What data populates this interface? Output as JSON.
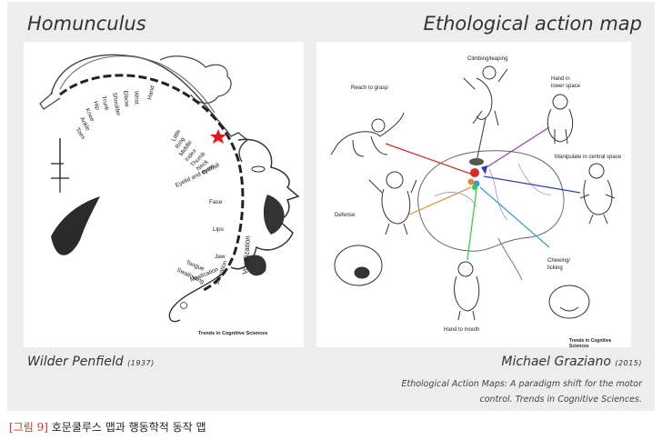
{
  "figure": {
    "left_title": "Homunculus",
    "right_title": "Ethological action map",
    "left_author": "Wilder Penfield",
    "left_year": "(1937)",
    "right_author": "Michael Graziano",
    "right_year": "(2015)",
    "citation_line1": "Ethological Action Maps: A paradigm shift for the motor",
    "citation_line2": "control. Trends in Cognitive Sciences.",
    "credit": "Trends in Cognitive Sciences"
  },
  "homunculus": {
    "body_labels": [
      "Toes",
      "Ankle",
      "Knee",
      "Hip",
      "Trunk",
      "Shoulder",
      "Elbow",
      "Wrist",
      "Hand"
    ],
    "finger_labels": [
      "Little",
      "Ring",
      "Middle",
      "Index",
      "Thumb",
      "Neck",
      "Brow",
      "Eyelid and eyeball"
    ],
    "face_labels": [
      "Face",
      "Lips"
    ],
    "mouth_labels": [
      "Jaw",
      "Tongue",
      "Swallowing",
      "Mastication",
      "Salivation",
      "Vocalization"
    ]
  },
  "action_map": {
    "labels": {
      "climbing": "Climbing/leaping",
      "reach": "Reach to grasp",
      "hand_lower_1": "Hand in",
      "hand_lower_2": "lower space",
      "manipulate": "Manipulate in central space",
      "defense": "Defense",
      "chewing_1": "Chewing/",
      "chewing_2": "licking",
      "hand_mouth": "Hand to mouth"
    },
    "colors": {
      "reach": "#d22b2b",
      "climbing": "#555555",
      "hand_lower": "#8e44ad",
      "manipulate": "#2b3ec8",
      "defense": "#e0883a",
      "chewing": "#3a9ad9",
      "hand_mouth": "#2ecc40"
    }
  },
  "caption": {
    "tag": "[그림 9]",
    "text": "호문쿨루스 맵과 행동학적 동작 맵"
  }
}
